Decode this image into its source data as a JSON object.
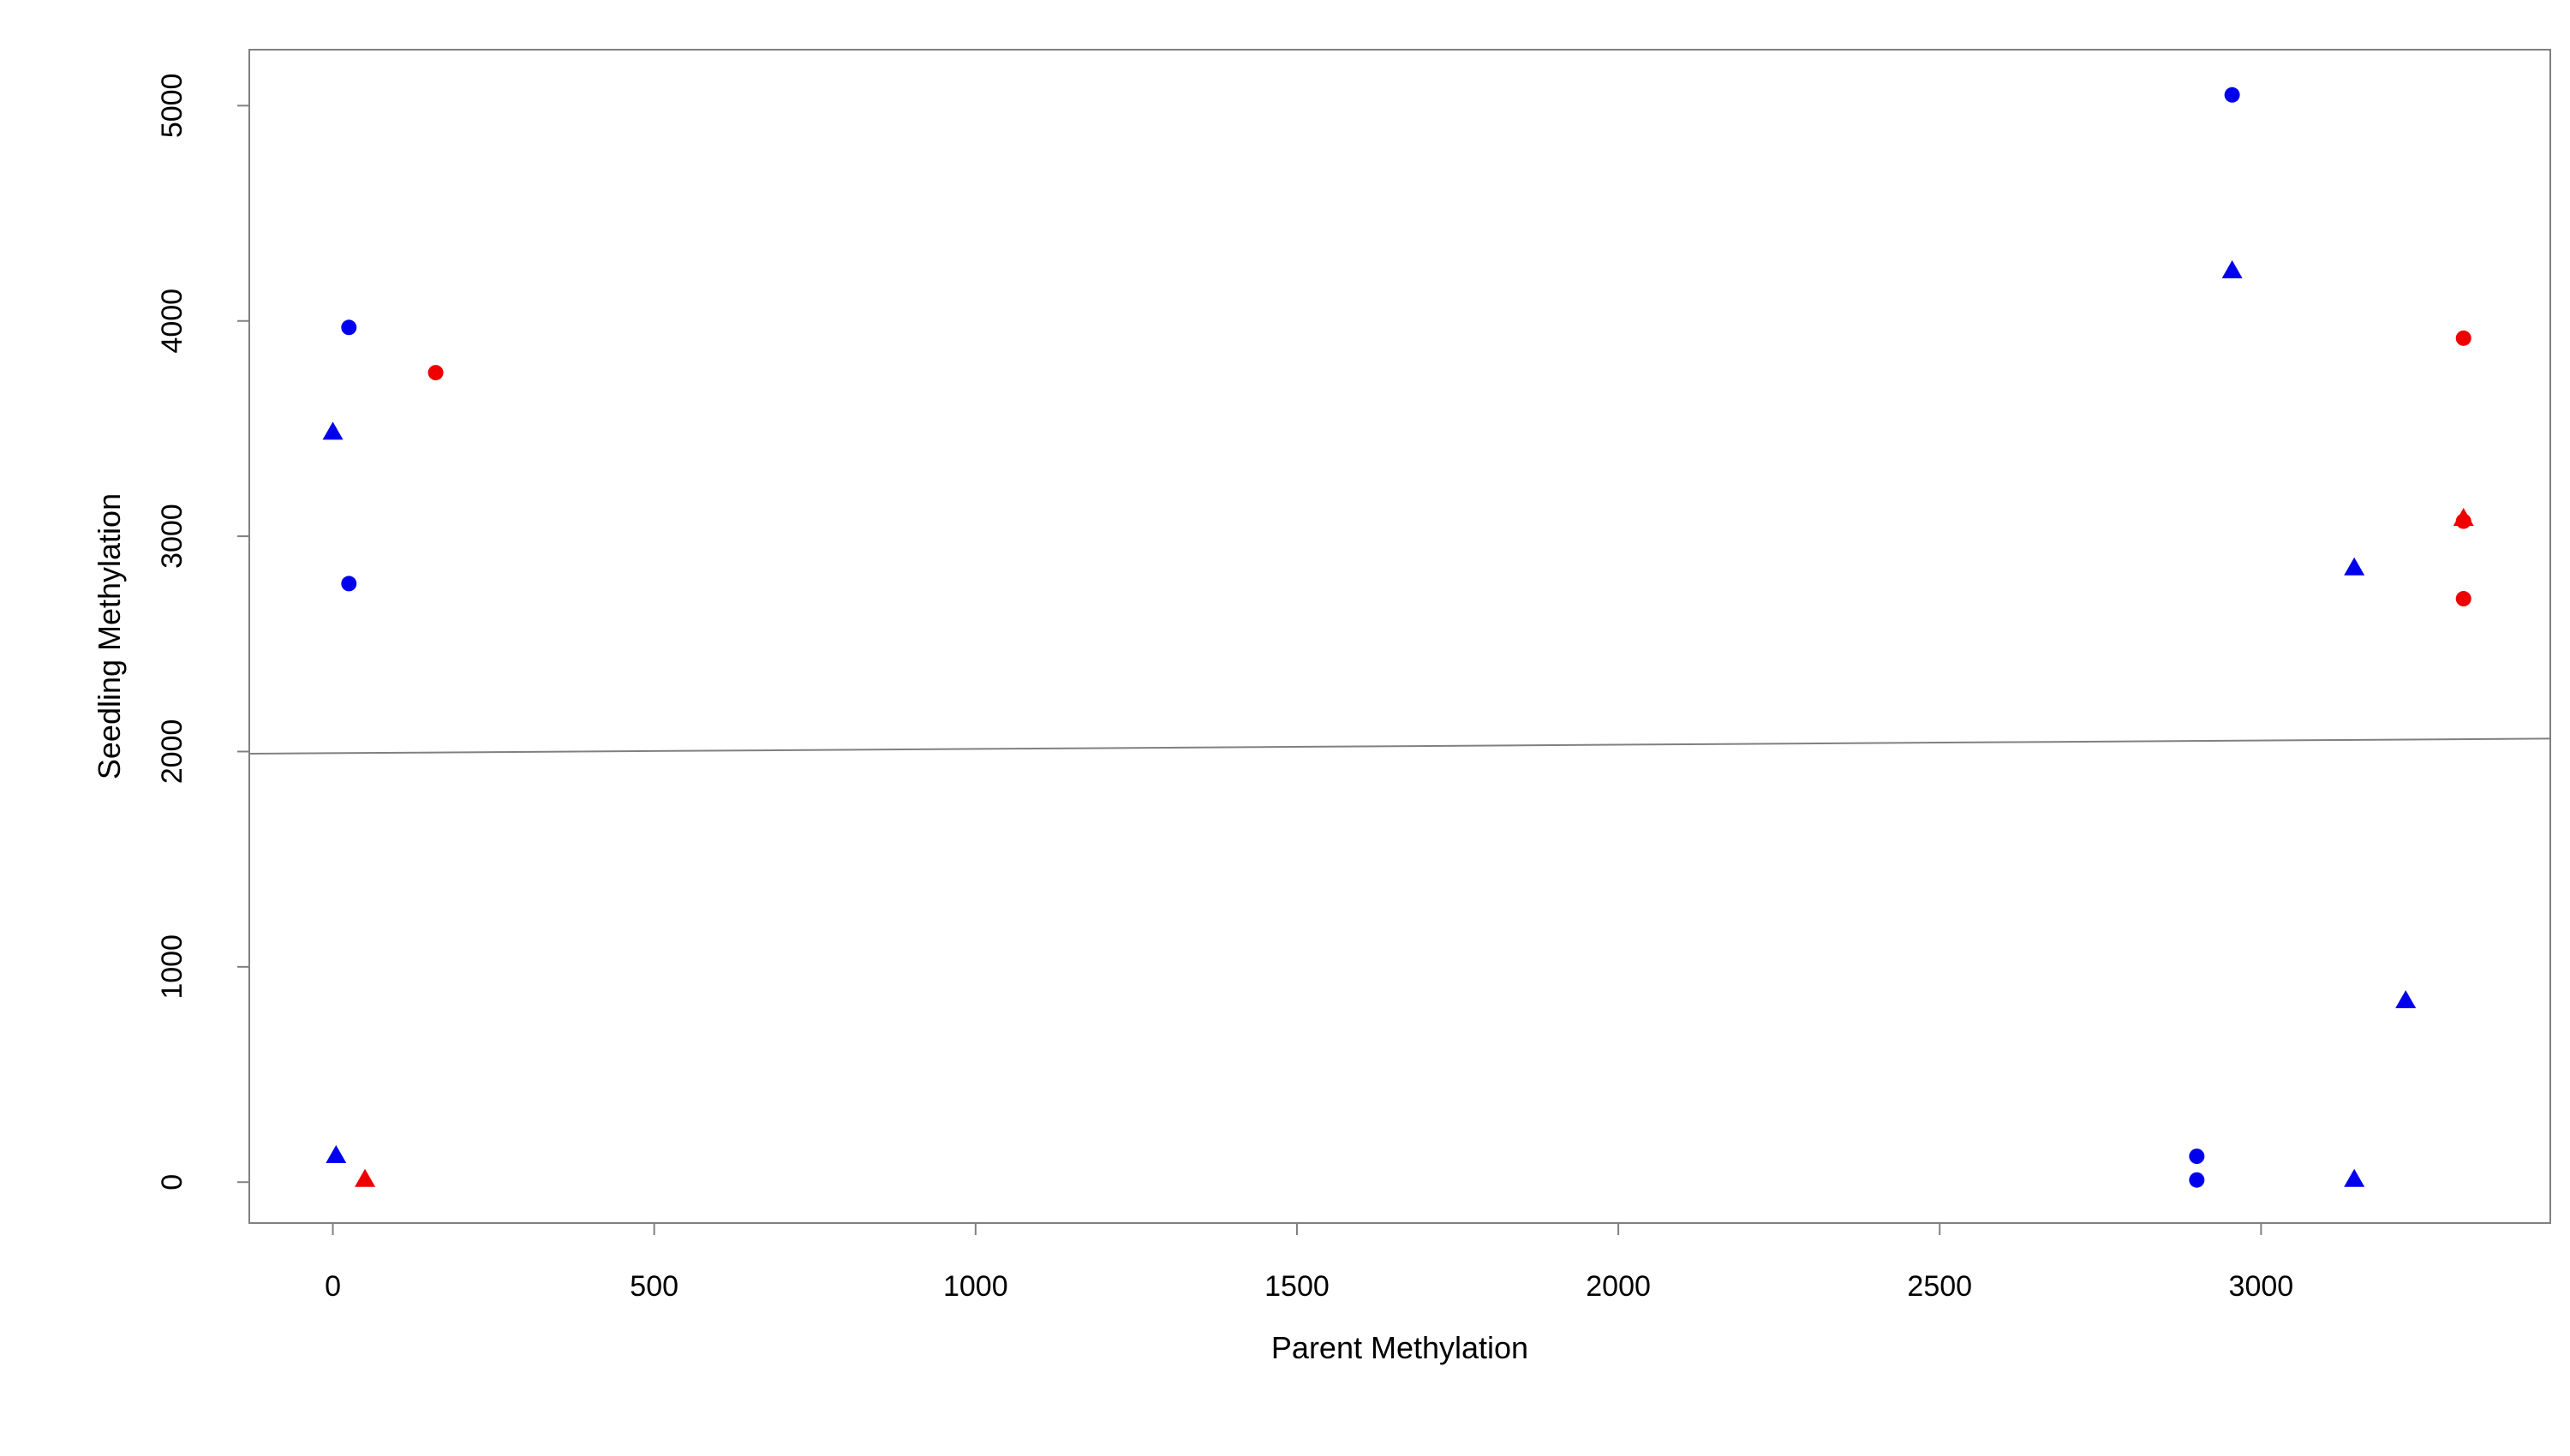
{
  "chart_data": {
    "type": "scatter",
    "title": "",
    "xlabel": "Parent Methylation",
    "ylabel": "Seedling Methylation",
    "xlim": [
      -130,
      3450
    ],
    "ylim": [
      -190,
      5260
    ],
    "xticks": [
      0,
      500,
      1000,
      1500,
      2000,
      2500,
      3000
    ],
    "yticks": [
      0,
      1000,
      2000,
      3000,
      4000,
      5000
    ],
    "grid": false,
    "legend": "none",
    "trend_line": {
      "x": [
        -130,
        3450
      ],
      "y": [
        1990,
        2060
      ],
      "color": "#808080"
    },
    "series": [
      {
        "marker": "circle",
        "color": "#0000ee",
        "points": [
          {
            "x": 25,
            "y": 3970
          },
          {
            "x": 25,
            "y": 2780
          },
          {
            "x": 2955,
            "y": 5050
          },
          {
            "x": 2900,
            "y": 120
          },
          {
            "x": 2900,
            "y": 10
          }
        ]
      },
      {
        "marker": "triangle",
        "color": "#0000ee",
        "points": [
          {
            "x": 0,
            "y": 3480
          },
          {
            "x": 5,
            "y": 120
          },
          {
            "x": 2955,
            "y": 4230
          },
          {
            "x": 3145,
            "y": 2850
          },
          {
            "x": 3225,
            "y": 840
          },
          {
            "x": 3145,
            "y": 10
          }
        ]
      },
      {
        "marker": "circle",
        "color": "#ee0000",
        "points": [
          {
            "x": 160,
            "y": 3760
          },
          {
            "x": 3315,
            "y": 3920
          },
          {
            "x": 3315,
            "y": 3070
          },
          {
            "x": 3315,
            "y": 2710
          }
        ]
      },
      {
        "marker": "triangle",
        "color": "#ee0000",
        "points": [
          {
            "x": 50,
            "y": 10
          },
          {
            "x": 3315,
            "y": 3080
          }
        ]
      }
    ]
  }
}
